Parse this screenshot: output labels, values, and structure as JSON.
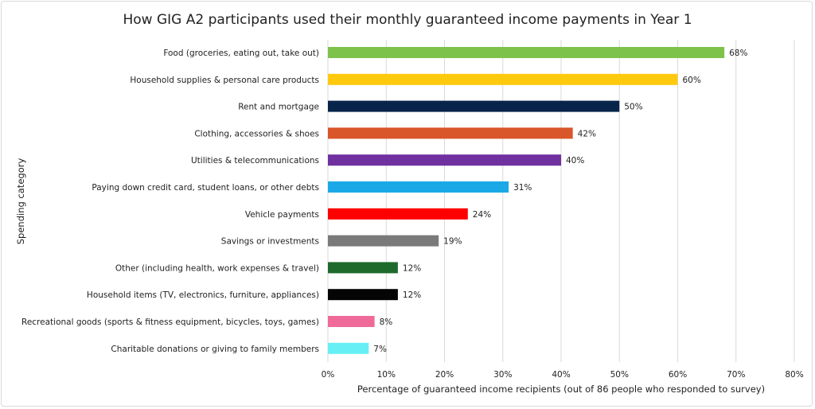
{
  "chart_data": {
    "type": "bar",
    "orientation": "horizontal",
    "title": "How GIG A2 participants used their monthly guaranteed income payments in Year 1",
    "xlabel": "Percentage of guaranteed income recipients (out of 86 people who responded to survey)",
    "ylabel": "Spending category",
    "xlim": [
      0,
      80
    ],
    "x_ticks": [
      "0%",
      "10%",
      "20%",
      "30%",
      "40%",
      "50%",
      "60%",
      "70%",
      "80%"
    ],
    "grid": "vertical",
    "categories": [
      "Food (groceries, eating out, take out)",
      "Household supplies &  personal care products",
      "Rent and mortgage",
      "Clothing, accessories & shoes",
      "Utilities & telecommunications",
      "Paying down credit card, student loans, or other debts",
      "Vehicle payments",
      "Savings or investments",
      "Other (including health, work expenses & travel)",
      "Household items (TV, electronics, furniture, appliances)",
      "Recreational goods (sports &  fitness equipment, bicycles, toys, games)",
      "Charitable donations or giving to family members"
    ],
    "values": [
      68,
      60,
      50,
      42,
      40,
      31,
      24,
      19,
      12,
      12,
      8,
      7
    ],
    "value_labels": [
      "68%",
      "60%",
      "50%",
      "42%",
      "40%",
      "31%",
      "24%",
      "19%",
      "12%",
      "12%",
      "8%",
      "7%"
    ],
    "colors": [
      "#7dc24b",
      "#ffc90e",
      "#08244a",
      "#d9552a",
      "#7030a0",
      "#1aa9e6",
      "#ff0000",
      "#7a7a7a",
      "#1e6a2c",
      "#050505",
      "#ef6a98",
      "#66f0f5"
    ]
  }
}
